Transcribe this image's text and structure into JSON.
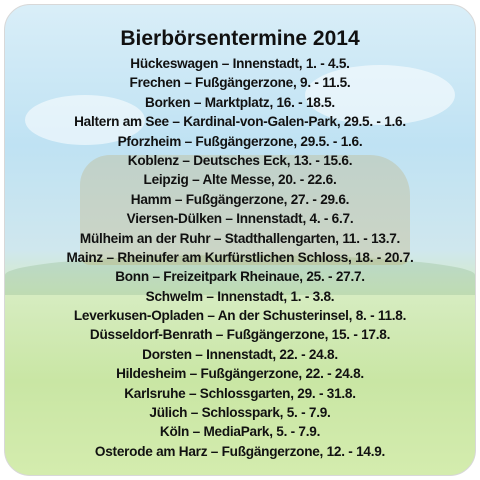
{
  "title": "Bierbörsentermine 2014",
  "entries": [
    "Hückeswagen – Innenstadt, 1. - 4.5.",
    "Frechen – Fußgängerzone, 9. - 11.5.",
    "Borken – Marktplatz, 16. - 18.5.",
    "Haltern am See – Kardinal-von-Galen-Park, 29.5. - 1.6.",
    "Pforzheim – Fußgängerzone, 29.5. - 1.6.",
    "Koblenz – Deutsches Eck, 13. - 15.6.",
    "Leipzig – Alte Messe, 20. - 22.6.",
    "Hamm – Fußgängerzone, 27. - 29.6.",
    "Viersen-Dülken – Innenstadt, 4. - 6.7.",
    "Mülheim an der Ruhr – Stadthallengarten, 11. - 13.7.",
    "Mainz – Rheinufer am Kurfürstlichen Schloss, 18. - 20.7.",
    "Bonn – Freizeitpark Rheinaue, 25. - 27.7.",
    "Schwelm – Innenstadt, 1. - 3.8.",
    "Leverkusen-Opladen – An der Schusterinsel, 8. - 11.8.",
    "Düsseldorf-Benrath – Fußgängerzone, 15. - 17.8.",
    "Dorsten – Innenstadt, 22. - 24.8.",
    "Hildesheim – Fußgängerzone, 22. - 24.8.",
    "Karlsruhe – Schlossgarten, 29. - 31.8.",
    "Jülich – Schlosspark, 5. - 7.9.",
    "Köln – MediaPark, 5. - 7.9.",
    "Osterode am Harz – Fußgängerzone, 12. - 14.9."
  ]
}
